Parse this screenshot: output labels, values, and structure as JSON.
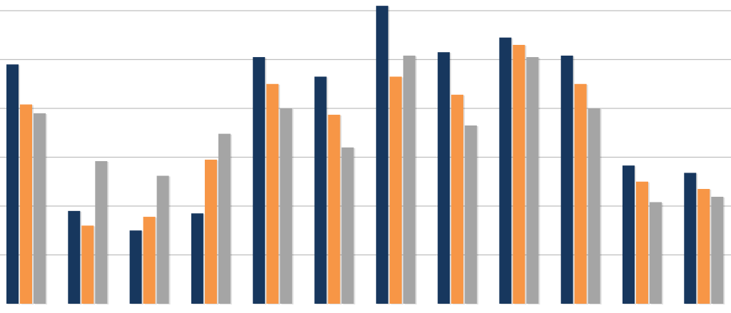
{
  "chart_data": {
    "type": "bar",
    "title": "",
    "xlabel": "",
    "ylabel": "",
    "ylim": [
      0,
      6.2
    ],
    "grid": true,
    "legend": "none",
    "categories": [
      "",
      "",
      "",
      "",
      "",
      "",
      "",
      "",
      "",
      "",
      "",
      ""
    ],
    "series": [
      {
        "color": "#17375e",
        "values": [
          4.9,
          1.9,
          1.5,
          1.85,
          5.05,
          4.65,
          6.1,
          5.15,
          5.45,
          5.08,
          2.83,
          2.68
        ]
      },
      {
        "color": "#f79646",
        "values": [
          4.08,
          1.6,
          1.78,
          2.95,
          4.5,
          3.87,
          4.65,
          4.28,
          5.3,
          4.5,
          2.5,
          2.35
        ]
      },
      {
        "color": "#a5a5a5",
        "values": [
          3.9,
          2.92,
          2.62,
          3.48,
          4.0,
          3.2,
          5.08,
          3.65,
          5.05,
          4.0,
          2.08,
          2.19
        ]
      }
    ]
  }
}
